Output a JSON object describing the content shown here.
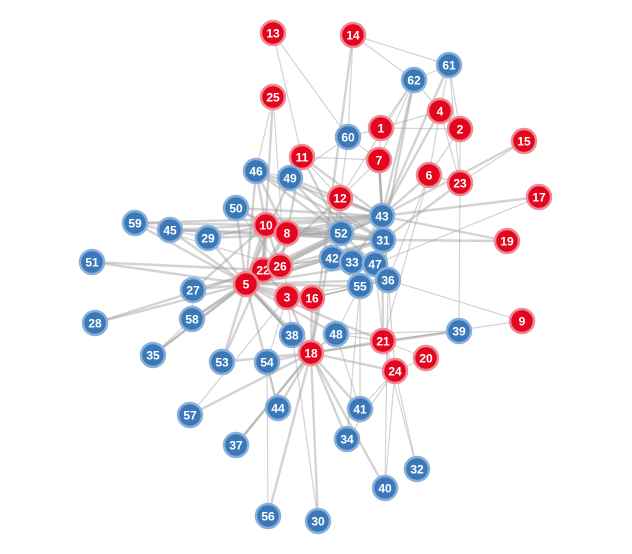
{
  "colors": {
    "red": {
      "fill": "#e3061f",
      "stroke": "#ef8a94"
    },
    "blue": {
      "fill": "#3a78b8",
      "stroke": "#8ab0da"
    }
  },
  "nodes": [
    {
      "id": "13",
      "group": "red"
    },
    {
      "id": "14",
      "group": "red"
    },
    {
      "id": "61",
      "group": "blue"
    },
    {
      "id": "62",
      "group": "blue"
    },
    {
      "id": "25",
      "group": "red"
    },
    {
      "id": "4",
      "group": "red"
    },
    {
      "id": "1",
      "group": "red"
    },
    {
      "id": "2",
      "group": "red"
    },
    {
      "id": "60",
      "group": "blue"
    },
    {
      "id": "15",
      "group": "red"
    },
    {
      "id": "11",
      "group": "red"
    },
    {
      "id": "7",
      "group": "red"
    },
    {
      "id": "46",
      "group": "blue"
    },
    {
      "id": "49",
      "group": "blue"
    },
    {
      "id": "6",
      "group": "red"
    },
    {
      "id": "23",
      "group": "red"
    },
    {
      "id": "17",
      "group": "red"
    },
    {
      "id": "12",
      "group": "red"
    },
    {
      "id": "50",
      "group": "blue"
    },
    {
      "id": "43",
      "group": "blue"
    },
    {
      "id": "59",
      "group": "blue"
    },
    {
      "id": "45",
      "group": "blue"
    },
    {
      "id": "10",
      "group": "red"
    },
    {
      "id": "8",
      "group": "red"
    },
    {
      "id": "29",
      "group": "blue"
    },
    {
      "id": "52",
      "group": "blue"
    },
    {
      "id": "31",
      "group": "blue"
    },
    {
      "id": "19",
      "group": "red"
    },
    {
      "id": "42",
      "group": "blue"
    },
    {
      "id": "33",
      "group": "blue"
    },
    {
      "id": "47",
      "group": "blue"
    },
    {
      "id": "51",
      "group": "blue"
    },
    {
      "id": "22",
      "group": "red"
    },
    {
      "id": "26",
      "group": "red"
    },
    {
      "id": "36",
      "group": "blue"
    },
    {
      "id": "5",
      "group": "red"
    },
    {
      "id": "55",
      "group": "blue"
    },
    {
      "id": "27",
      "group": "blue"
    },
    {
      "id": "3",
      "group": "red"
    },
    {
      "id": "16",
      "group": "red"
    },
    {
      "id": "9",
      "group": "red"
    },
    {
      "id": "28",
      "group": "blue"
    },
    {
      "id": "58",
      "group": "blue"
    },
    {
      "id": "38",
      "group": "blue"
    },
    {
      "id": "48",
      "group": "blue"
    },
    {
      "id": "39",
      "group": "blue"
    },
    {
      "id": "21",
      "group": "red"
    },
    {
      "id": "35",
      "group": "blue"
    },
    {
      "id": "18",
      "group": "red"
    },
    {
      "id": "53",
      "group": "blue"
    },
    {
      "id": "54",
      "group": "blue"
    },
    {
      "id": "20",
      "group": "red"
    },
    {
      "id": "24",
      "group": "red"
    },
    {
      "id": "57",
      "group": "blue"
    },
    {
      "id": "44",
      "group": "blue"
    },
    {
      "id": "41",
      "group": "blue"
    },
    {
      "id": "37",
      "group": "blue"
    },
    {
      "id": "34",
      "group": "blue"
    },
    {
      "id": "32",
      "group": "blue"
    },
    {
      "id": "40",
      "group": "blue"
    },
    {
      "id": "56",
      "group": "blue"
    },
    {
      "id": "30",
      "group": "blue"
    }
  ],
  "edges": [
    [
      "13",
      "11"
    ],
    [
      "13",
      "60"
    ],
    [
      "14",
      "60"
    ],
    [
      "14",
      "62"
    ],
    [
      "14",
      "61"
    ],
    [
      "14",
      "18"
    ],
    [
      "61",
      "62"
    ],
    [
      "61",
      "4"
    ],
    [
      "61",
      "2"
    ],
    [
      "61",
      "23"
    ],
    [
      "61",
      "43"
    ],
    [
      "62",
      "4"
    ],
    [
      "62",
      "1"
    ],
    [
      "62",
      "7"
    ],
    [
      "62",
      "31"
    ],
    [
      "62",
      "43"
    ],
    [
      "62",
      "12"
    ],
    [
      "25",
      "46"
    ],
    [
      "25",
      "3"
    ],
    [
      "25",
      "22"
    ],
    [
      "4",
      "2"
    ],
    [
      "4",
      "1"
    ],
    [
      "4",
      "6"
    ],
    [
      "4",
      "23"
    ],
    [
      "4",
      "43"
    ],
    [
      "1",
      "7"
    ],
    [
      "1",
      "60"
    ],
    [
      "1",
      "2"
    ],
    [
      "2",
      "23"
    ],
    [
      "2",
      "6"
    ],
    [
      "60",
      "49"
    ],
    [
      "60",
      "7"
    ],
    [
      "60",
      "12"
    ],
    [
      "15",
      "23"
    ],
    [
      "15",
      "43"
    ],
    [
      "11",
      "49"
    ],
    [
      "11",
      "7"
    ],
    [
      "11",
      "12"
    ],
    [
      "11",
      "8"
    ],
    [
      "11",
      "52"
    ],
    [
      "11",
      "43"
    ],
    [
      "7",
      "12"
    ],
    [
      "7",
      "43"
    ],
    [
      "7",
      "31"
    ],
    [
      "7",
      "36"
    ],
    [
      "7",
      "24"
    ],
    [
      "46",
      "49"
    ],
    [
      "46",
      "8"
    ],
    [
      "46",
      "10"
    ],
    [
      "46",
      "5"
    ],
    [
      "46",
      "52"
    ],
    [
      "46",
      "43"
    ],
    [
      "46",
      "31"
    ],
    [
      "49",
      "5"
    ],
    [
      "49",
      "52"
    ],
    [
      "49",
      "43"
    ],
    [
      "49",
      "31"
    ],
    [
      "6",
      "43"
    ],
    [
      "6",
      "23"
    ],
    [
      "6",
      "36"
    ],
    [
      "6",
      "21"
    ],
    [
      "23",
      "31"
    ],
    [
      "23",
      "39"
    ],
    [
      "17",
      "43"
    ],
    [
      "17",
      "47"
    ],
    [
      "12",
      "43"
    ],
    [
      "12",
      "52"
    ],
    [
      "12",
      "5"
    ],
    [
      "12",
      "18"
    ],
    [
      "50",
      "10"
    ],
    [
      "50",
      "8"
    ],
    [
      "50",
      "26"
    ],
    [
      "50",
      "5"
    ],
    [
      "50",
      "43"
    ],
    [
      "43",
      "52"
    ],
    [
      "43",
      "31"
    ],
    [
      "43",
      "47"
    ],
    [
      "43",
      "33"
    ],
    [
      "43",
      "21"
    ],
    [
      "59",
      "45"
    ],
    [
      "59",
      "10"
    ],
    [
      "59",
      "26"
    ],
    [
      "59",
      "5"
    ],
    [
      "59",
      "43"
    ],
    [
      "45",
      "29"
    ],
    [
      "45",
      "10"
    ],
    [
      "45",
      "8"
    ],
    [
      "45",
      "5"
    ],
    [
      "45",
      "31"
    ],
    [
      "10",
      "8"
    ],
    [
      "10",
      "22"
    ],
    [
      "10",
      "26"
    ],
    [
      "10",
      "5"
    ],
    [
      "10",
      "52"
    ],
    [
      "10",
      "43"
    ],
    [
      "8",
      "22"
    ],
    [
      "8",
      "26"
    ],
    [
      "8",
      "52"
    ],
    [
      "8",
      "31"
    ],
    [
      "8",
      "43"
    ],
    [
      "29",
      "10"
    ],
    [
      "29",
      "5"
    ],
    [
      "29",
      "52"
    ],
    [
      "52",
      "42"
    ],
    [
      "52",
      "33"
    ],
    [
      "52",
      "31"
    ],
    [
      "52",
      "47"
    ],
    [
      "52",
      "5"
    ],
    [
      "31",
      "36"
    ],
    [
      "31",
      "47"
    ],
    [
      "31",
      "19"
    ],
    [
      "31",
      "5"
    ],
    [
      "19",
      "43"
    ],
    [
      "42",
      "33"
    ],
    [
      "42",
      "55"
    ],
    [
      "42",
      "5"
    ],
    [
      "42",
      "26"
    ],
    [
      "33",
      "47"
    ],
    [
      "33",
      "55"
    ],
    [
      "47",
      "36"
    ],
    [
      "47",
      "21"
    ],
    [
      "47",
      "5"
    ],
    [
      "51",
      "5"
    ],
    [
      "51",
      "22"
    ],
    [
      "22",
      "26"
    ],
    [
      "22",
      "5"
    ],
    [
      "22",
      "3"
    ],
    [
      "22",
      "52"
    ],
    [
      "26",
      "5"
    ],
    [
      "26",
      "42"
    ],
    [
      "26",
      "31"
    ],
    [
      "26",
      "43"
    ],
    [
      "5",
      "3"
    ],
    [
      "5",
      "16"
    ],
    [
      "5",
      "55"
    ],
    [
      "5",
      "38"
    ],
    [
      "5",
      "18"
    ],
    [
      "5",
      "27"
    ],
    [
      "5",
      "58"
    ],
    [
      "5",
      "53"
    ],
    [
      "5",
      "35"
    ],
    [
      "5",
      "48"
    ],
    [
      "5",
      "36"
    ],
    [
      "5",
      "21"
    ],
    [
      "55",
      "36"
    ],
    [
      "55",
      "16"
    ],
    [
      "27",
      "22"
    ],
    [
      "27",
      "58"
    ],
    [
      "27",
      "10"
    ],
    [
      "28",
      "5"
    ],
    [
      "28",
      "22"
    ],
    [
      "58",
      "22"
    ],
    [
      "3",
      "16"
    ],
    [
      "3",
      "18"
    ],
    [
      "16",
      "18"
    ],
    [
      "16",
      "55"
    ],
    [
      "9",
      "36"
    ],
    [
      "9",
      "21"
    ],
    [
      "38",
      "18"
    ],
    [
      "48",
      "18"
    ],
    [
      "48",
      "21"
    ],
    [
      "48",
      "41"
    ],
    [
      "39",
      "21"
    ],
    [
      "39",
      "18"
    ],
    [
      "39",
      "48"
    ],
    [
      "35",
      "22"
    ],
    [
      "35",
      "58"
    ],
    [
      "18",
      "53"
    ],
    [
      "18",
      "54"
    ],
    [
      "18",
      "44"
    ],
    [
      "18",
      "57"
    ],
    [
      "18",
      "37"
    ],
    [
      "18",
      "56"
    ],
    [
      "18",
      "30"
    ],
    [
      "18",
      "41"
    ],
    [
      "18",
      "34"
    ],
    [
      "18",
      "24"
    ],
    [
      "18",
      "21"
    ],
    [
      "18",
      "40"
    ],
    [
      "53",
      "22"
    ],
    [
      "54",
      "3"
    ],
    [
      "54",
      "44"
    ],
    [
      "21",
      "24"
    ],
    [
      "21",
      "20"
    ],
    [
      "21",
      "32"
    ],
    [
      "24",
      "41"
    ],
    [
      "24",
      "34"
    ],
    [
      "24",
      "40"
    ],
    [
      "20",
      "24"
    ],
    [
      "57",
      "3"
    ],
    [
      "37",
      "18"
    ],
    [
      "34",
      "55"
    ],
    [
      "40",
      "36"
    ],
    [
      "32",
      "24"
    ],
    [
      "56",
      "54"
    ],
    [
      "30",
      "3"
    ],
    [
      "44",
      "5"
    ],
    [
      "41",
      "55"
    ],
    [
      "36",
      "16"
    ],
    [
      "36",
      "3"
    ],
    [
      "38",
      "5"
    ],
    [
      "48",
      "55"
    ]
  ]
}
